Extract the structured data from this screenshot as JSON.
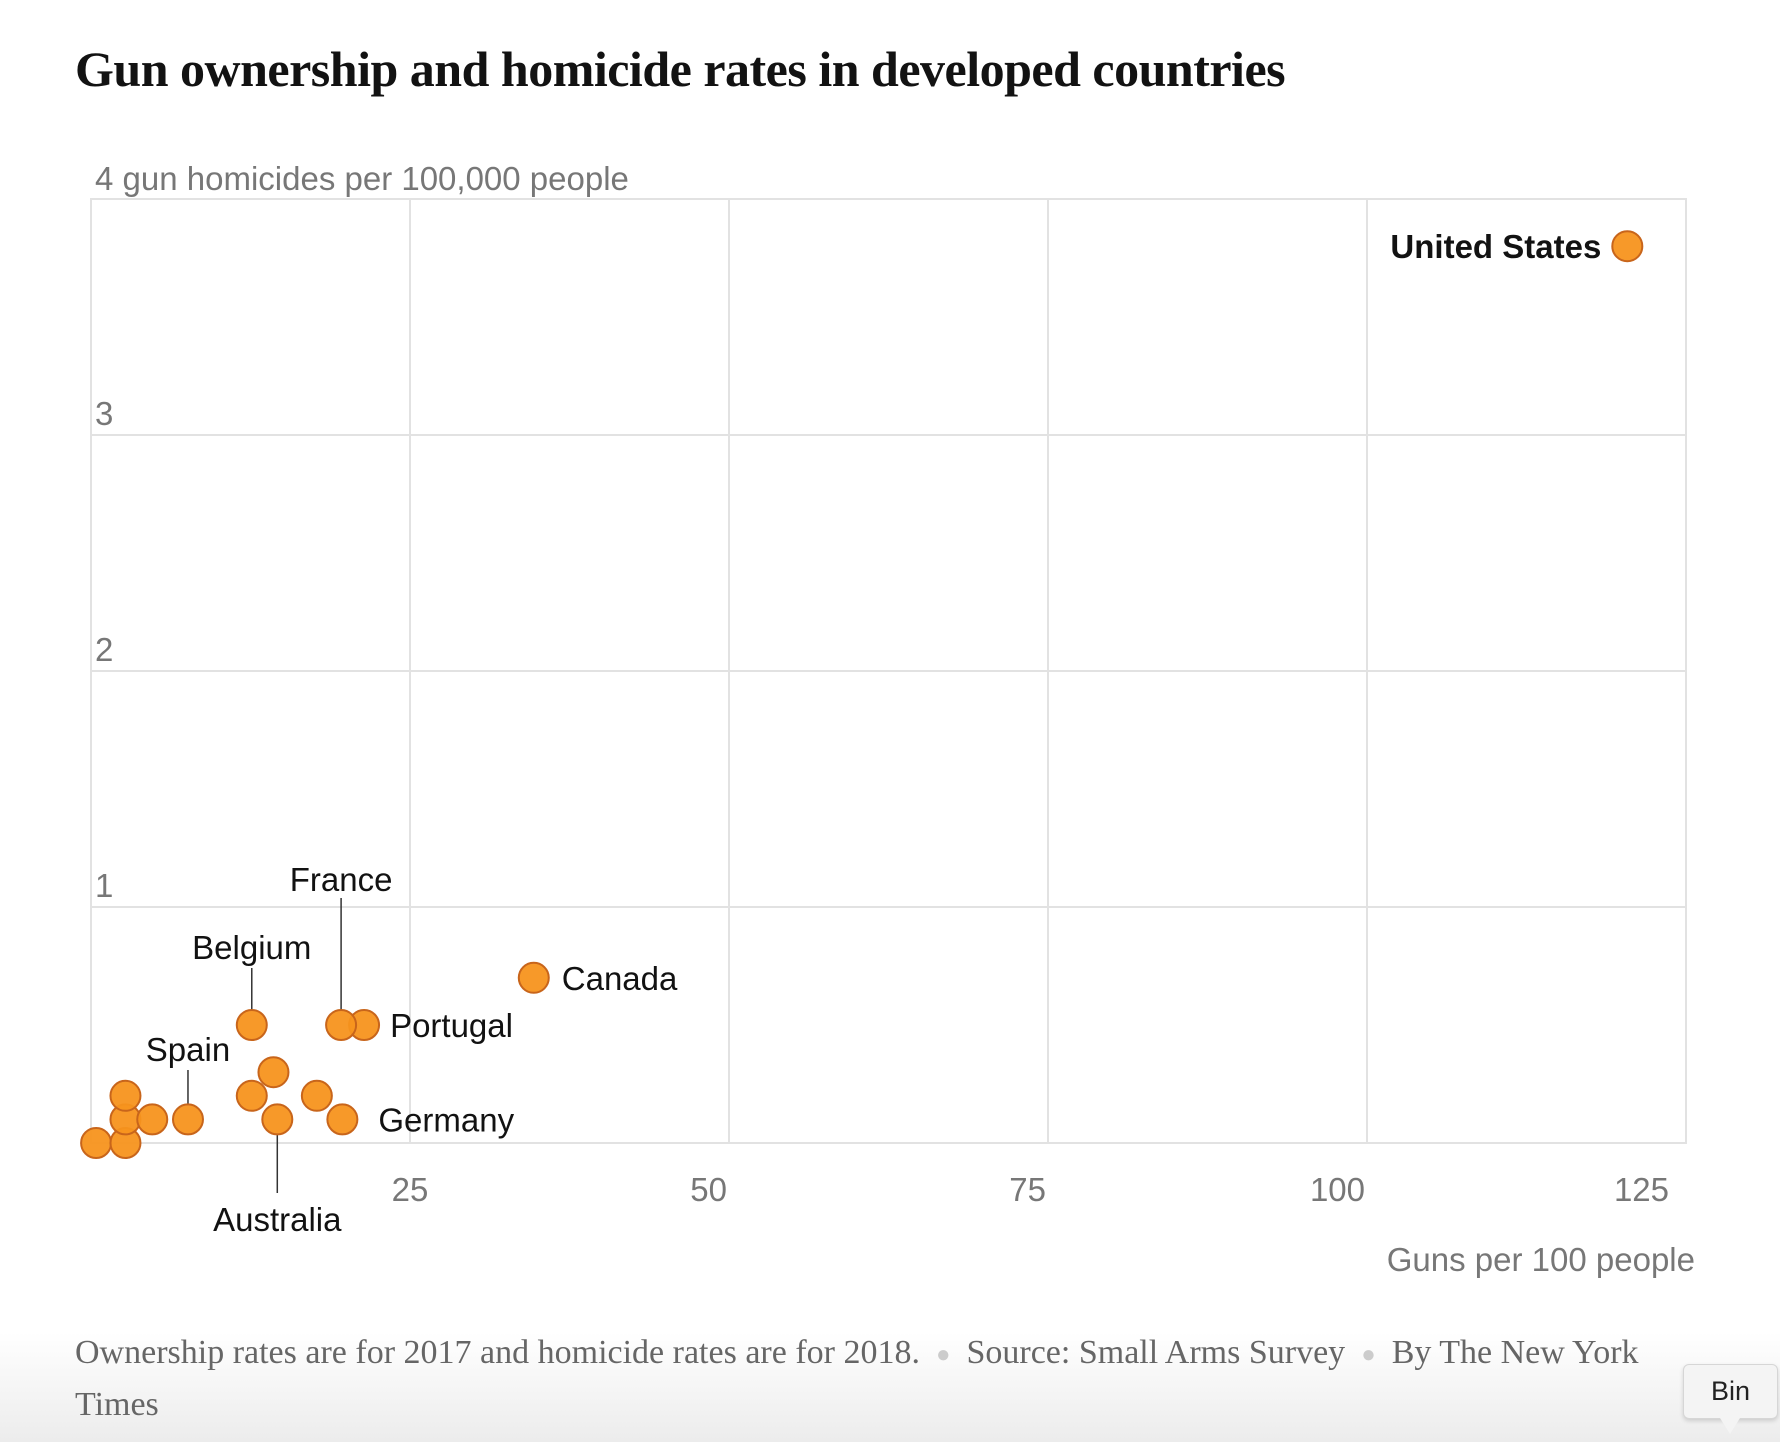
{
  "chart_data": {
    "type": "scatter",
    "title": "Gun ownership and homicide rates in developed countries",
    "xlabel": "Guns per 100 people",
    "ylabel": "4 gun homicides per 100,000 people",
    "xlim": [
      0,
      125
    ],
    "ylim": [
      0,
      4
    ],
    "xticks": [
      25,
      50,
      75,
      100,
      125
    ],
    "yticks": [
      1,
      2,
      3
    ],
    "grid": true,
    "marker_color": "#f7941d",
    "marker_edge": "#c8651b",
    "points": [
      {
        "x": 0.4,
        "y": 0.0
      },
      {
        "x": 2.7,
        "y": 0.0
      },
      {
        "x": 2.7,
        "y": 0.1
      },
      {
        "x": 4.8,
        "y": 0.1
      },
      {
        "x": 2.7,
        "y": 0.2
      },
      {
        "x": 12.6,
        "y": 0.2
      },
      {
        "x": 17.7,
        "y": 0.2
      },
      {
        "x": 14.3,
        "y": 0.3
      },
      {
        "x": 7.6,
        "y": 0.1,
        "label": "Spain"
      },
      {
        "x": 14.6,
        "y": 0.1,
        "label": "Australia"
      },
      {
        "x": 19.7,
        "y": 0.1,
        "label": "Germany"
      },
      {
        "x": 12.6,
        "y": 0.5,
        "label": "Belgium"
      },
      {
        "x": 21.4,
        "y": 0.5,
        "label": "Portugal"
      },
      {
        "x": 19.6,
        "y": 0.5,
        "label": "France"
      },
      {
        "x": 34.7,
        "y": 0.7,
        "label": "Canada"
      },
      {
        "x": 120.4,
        "y": 3.8,
        "label": "United States"
      }
    ]
  },
  "footer": {
    "note": "Ownership rates are for 2017 and homicide rates are for 2018.",
    "source": "Source: Small Arms Survey",
    "byline": "By The New York Times"
  },
  "tooltip": "Bin"
}
